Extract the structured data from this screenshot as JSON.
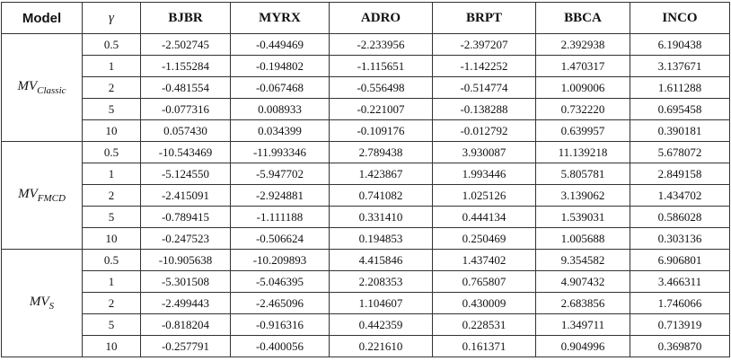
{
  "table": {
    "header": [
      "Model",
      "γ",
      "BJBR",
      "MYRX",
      "ADRO",
      "BRPT",
      "BBCA",
      "INCO"
    ],
    "groups": [
      {
        "model": {
          "main": "MV",
          "sub": "Classic"
        },
        "rows": [
          [
            "0.5",
            "-2.502745",
            "-0.449469",
            "-2.233956",
            "-2.397207",
            "2.392938",
            "6.190438"
          ],
          [
            "1",
            "-1.155284",
            "-0.194802",
            "-1.115651",
            "-1.142252",
            "1.470317",
            "3.137671"
          ],
          [
            "2",
            "-0.481554",
            "-0.067468",
            "-0.556498",
            "-0.514774",
            "1.009006",
            "1.611288"
          ],
          [
            "5",
            "-0.077316",
            "0.008933",
            "-0.221007",
            "-0.138288",
            "0.732220",
            "0.695458"
          ],
          [
            "10",
            "0.057430",
            "0.034399",
            "-0.109176",
            "-0.012792",
            "0.639957",
            "0.390181"
          ]
        ]
      },
      {
        "model": {
          "main": "MV",
          "sub": "FMCD"
        },
        "rows": [
          [
            "0.5",
            "-10.543469",
            "-11.993346",
            "2.789438",
            "3.930087",
            "11.139218",
            "5.678072"
          ],
          [
            "1",
            "-5.124550",
            "-5.947702",
            "1.423867",
            "1.993446",
            "5.805781",
            "2.849158"
          ],
          [
            "2",
            "-2.415091",
            "-2.924881",
            "0.741082",
            "1.025126",
            "3.139062",
            "1.434702"
          ],
          [
            "5",
            "-0.789415",
            "-1.111188",
            "0.331410",
            "0.444134",
            "1.539031",
            "0.586028"
          ],
          [
            "10",
            "-0.247523",
            "-0.506624",
            "0.194853",
            "0.250469",
            "1.005688",
            "0.303136"
          ]
        ]
      },
      {
        "model": {
          "main": "MV",
          "sub": "S"
        },
        "rows": [
          [
            "0.5",
            "-10.905638",
            "-10.209893",
            "4.415846",
            "1.437402",
            "9.354582",
            "6.906801"
          ],
          [
            "1",
            "-5.301508",
            "-5.046395",
            "2.208353",
            "0.765807",
            "4.907432",
            "3.466311"
          ],
          [
            "2",
            "-2.499443",
            "-2.465096",
            "1.104607",
            "0.430009",
            "2.683856",
            "1.746066"
          ],
          [
            "5",
            "-0.818204",
            "-0.916316",
            "0.442359",
            "0.228531",
            "1.349711",
            "0.713919"
          ],
          [
            "10",
            "-0.257791",
            "-0.400056",
            "0.221610",
            "0.161371",
            "0.904996",
            "0.369870"
          ]
        ]
      }
    ]
  }
}
